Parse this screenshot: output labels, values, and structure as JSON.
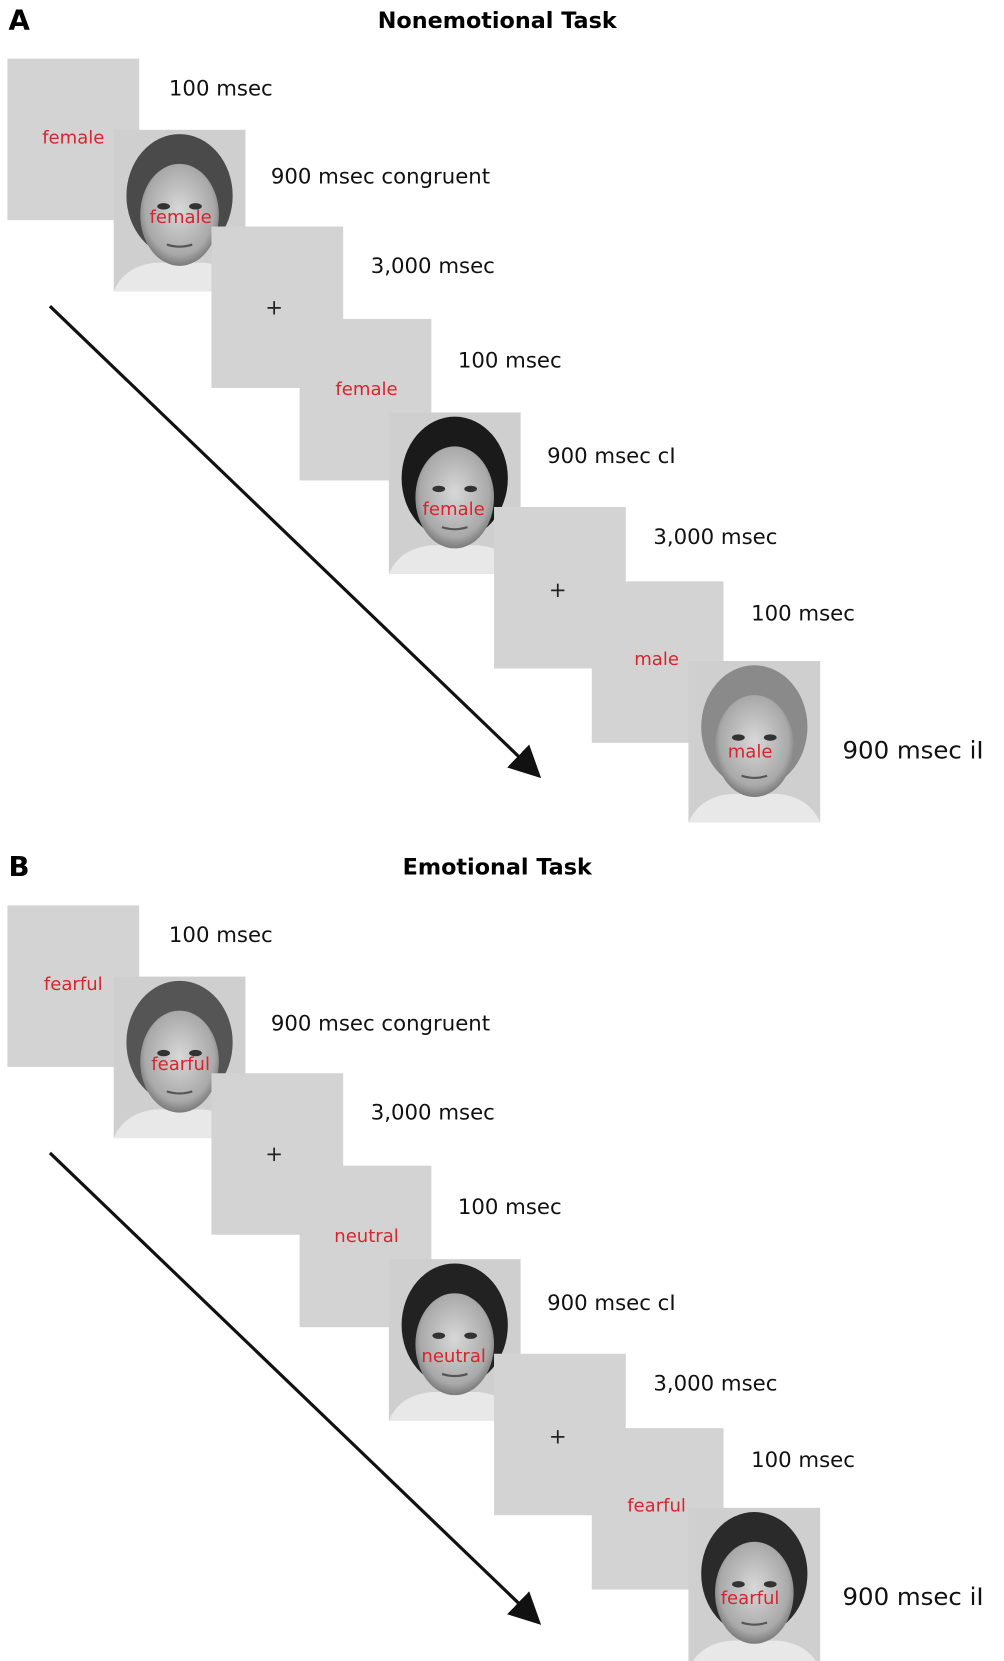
{
  "panels": [
    {
      "label": "A",
      "title": "Nonemotional Task",
      "steps": [
        {
          "timing": "100 msec",
          "stimulus": "female"
        },
        {
          "timing": "900 msec congruent",
          "stimulus": "female"
        },
        {
          "timing": "3,000 msec",
          "stimulus": "+"
        },
        {
          "timing": "100 msec",
          "stimulus": "female"
        },
        {
          "timing": "900 msec cI",
          "stimulus": "female"
        },
        {
          "timing": "3,000 msec",
          "stimulus": "+"
        },
        {
          "timing": "100 msec",
          "stimulus": "male"
        },
        {
          "timing": "900 msec iI",
          "stimulus": "male"
        }
      ]
    },
    {
      "label": "B",
      "title": "Emotional Task",
      "steps": [
        {
          "timing": "100 msec",
          "stimulus": "fearful"
        },
        {
          "timing": "900 msec congruent",
          "stimulus": "fearful"
        },
        {
          "timing": "3,000 msec",
          "stimulus": "+"
        },
        {
          "timing": "100 msec",
          "stimulus": "neutral"
        },
        {
          "timing": "900 msec cI",
          "stimulus": "neutral"
        },
        {
          "timing": "3,000 msec",
          "stimulus": "+"
        },
        {
          "timing": "100 msec",
          "stimulus": "fearful"
        },
        {
          "timing": "900 msec iI",
          "stimulus": "fearful"
        }
      ]
    }
  ]
}
